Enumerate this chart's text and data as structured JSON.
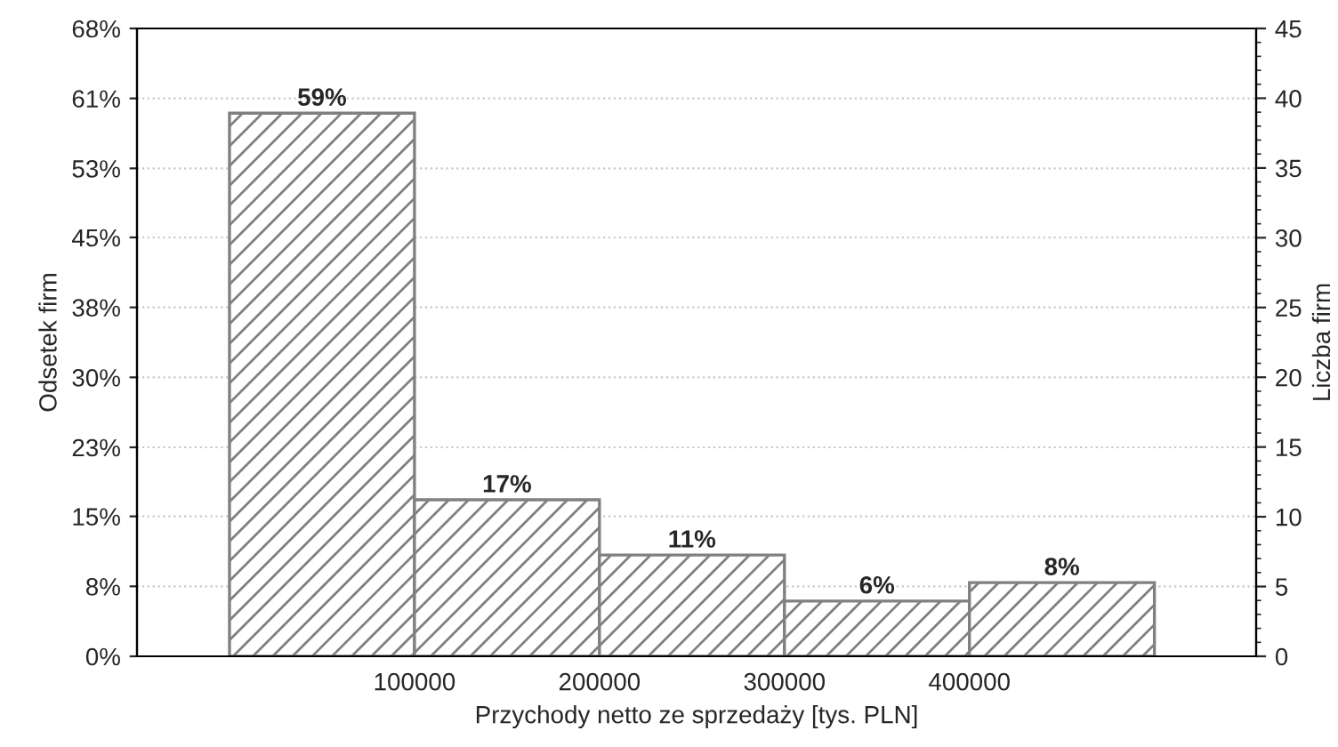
{
  "chart_data": {
    "type": "histogram",
    "xlabel": "Przychody netto ze sprzedaży [tys. PLN]",
    "ylabel": "Odsetek firm",
    "y2label": "Liczba firm",
    "bins": [
      0,
      100000,
      200000,
      300000,
      400000,
      500000
    ],
    "values": [
      59,
      17,
      11,
      6,
      8
    ],
    "value_labels": [
      "59%",
      "17%",
      "11%",
      "6%",
      "8%"
    ],
    "color": "#808080",
    "xlim": [
      -50000,
      555000
    ],
    "xticks": [
      {
        "value": 100000,
        "label": "100000"
      },
      {
        "value": 200000,
        "label": "200000"
      },
      {
        "value": 300000,
        "label": "300000"
      },
      {
        "value": 400000,
        "label": "400000"
      }
    ],
    "ylim": [
      0,
      68.2
    ],
    "yticks": [
      {
        "value": 0,
        "label": "0%"
      },
      {
        "value": 7.6,
        "label": "8%"
      },
      {
        "value": 15.2,
        "label": "15%"
      },
      {
        "value": 22.7,
        "label": "23%"
      },
      {
        "value": 30.3,
        "label": "30%"
      },
      {
        "value": 37.9,
        "label": "38%"
      },
      {
        "value": 45.5,
        "label": "45%"
      },
      {
        "value": 53.0,
        "label": "53%"
      },
      {
        "value": 60.6,
        "label": "61%"
      },
      {
        "value": 68.2,
        "label": "68%"
      }
    ],
    "y2lim": [
      0,
      45
    ],
    "y2ticks": [
      0,
      5,
      10,
      15,
      20,
      25,
      30,
      35,
      40,
      45
    ],
    "grid": "y",
    "legend": false
  }
}
